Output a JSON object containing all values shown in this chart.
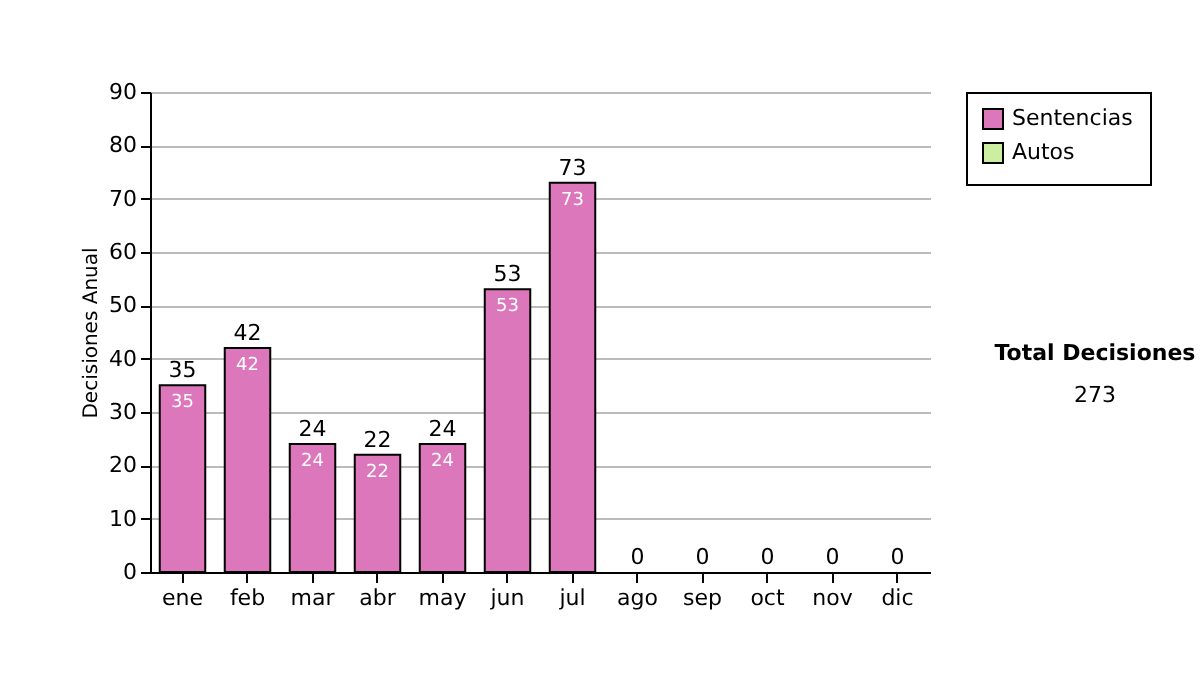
{
  "chart_data": {
    "type": "bar",
    "stacked": true,
    "ylabel": "Decisiones Anual",
    "categories": [
      "ene",
      "feb",
      "mar",
      "abr",
      "may",
      "jun",
      "jul",
      "ago",
      "sep",
      "oct",
      "nov",
      "dic"
    ],
    "series": [
      {
        "name": "Sentencias",
        "color": "#dd77bb",
        "values": [
          35,
          42,
          24,
          22,
          24,
          53,
          73,
          0,
          0,
          0,
          0,
          0
        ],
        "value_labels": [
          "35",
          "42",
          "24",
          "22",
          "24",
          "53",
          "73",
          null,
          null,
          null,
          null,
          null
        ]
      },
      {
        "name": "Autos",
        "color": "#cceea0",
        "values": [
          0,
          0,
          0,
          0,
          0,
          0,
          0,
          0,
          0,
          0,
          0,
          0
        ]
      }
    ],
    "totals": [
      "35",
      "42",
      "24",
      "22",
      "24",
      "53",
      "73",
      "0",
      "0",
      "0",
      "0",
      "0"
    ],
    "ylim": [
      0,
      90
    ],
    "yticks": [
      0,
      10,
      20,
      30,
      40,
      50,
      60,
      70,
      80,
      90
    ],
    "grid": "y",
    "legend": "right",
    "annotations": [
      "Total Decisiones",
      "273"
    ]
  }
}
